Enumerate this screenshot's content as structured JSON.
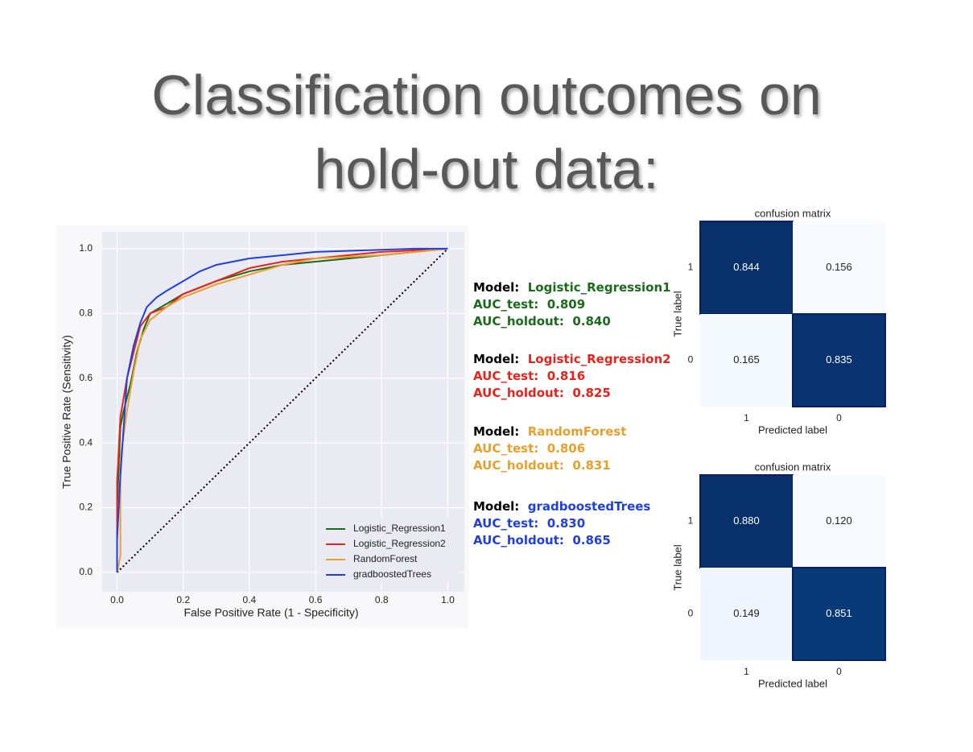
{
  "title": "Classification outcomes on hold-out data:",
  "chart_data": [
    {
      "type": "line",
      "xlabel": "False Positive Rate (1 - Specificity)",
      "ylabel": "True Positive Rate (Sensitivity)",
      "xlim": [
        -0.045,
        1.05
      ],
      "ylim": [
        -0.06,
        1.052
      ],
      "xticks": [
        {
          "value": 0,
          "label": "0.0"
        },
        0.2,
        0.4,
        0.6,
        0.8,
        {
          "value": 1,
          "label": "1.0"
        }
      ],
      "yticks": [
        {
          "value": 0,
          "label": "0.0"
        },
        0.2,
        0.4,
        0.6,
        0.8,
        {
          "value": 1,
          "label": "1.0"
        }
      ],
      "grid": true,
      "legend": "lower right",
      "series": [
        {
          "name": "Logistic_Regression1",
          "color": "#1a6b1a",
          "x": [
            0,
            0,
            0.01,
            0.02,
            0.04,
            0.06,
            0.08,
            0.1,
            0.15,
            0.2,
            0.3,
            0.4,
            0.5,
            0.6,
            0.8,
            1
          ],
          "values": [
            0,
            0.2,
            0.45,
            0.5,
            0.58,
            0.68,
            0.75,
            0.8,
            0.83,
            0.86,
            0.9,
            0.93,
            0.95,
            0.96,
            0.98,
            1
          ]
        },
        {
          "name": "Logistic_Regression2",
          "color": "#e8231c",
          "x": [
            0,
            0,
            0.01,
            0.03,
            0.05,
            0.07,
            0.1,
            0.15,
            0.2,
            0.3,
            0.4,
            0.5,
            0.6,
            0.8,
            1
          ],
          "values": [
            0,
            0.28,
            0.48,
            0.6,
            0.68,
            0.76,
            0.8,
            0.82,
            0.86,
            0.9,
            0.94,
            0.96,
            0.97,
            0.99,
            1
          ]
        },
        {
          "name": "RandomForest",
          "color": "#e8a02c",
          "x": [
            0,
            0.01,
            0.01,
            0.03,
            0.05,
            0.07,
            0.1,
            0.15,
            0.2,
            0.3,
            0.4,
            0.5,
            0.6,
            0.8,
            0.9,
            1
          ],
          "values": [
            0,
            0.05,
            0.35,
            0.5,
            0.62,
            0.72,
            0.78,
            0.82,
            0.85,
            0.89,
            0.92,
            0.95,
            0.97,
            0.98,
            0.99,
            1
          ]
        },
        {
          "name": "gradboostedTrees",
          "color": "#1f3fe0",
          "x": [
            0,
            0,
            0.01,
            0.02,
            0.03,
            0.05,
            0.07,
            0.09,
            0.12,
            0.15,
            0.2,
            0.25,
            0.3,
            0.4,
            0.5,
            0.6,
            0.75,
            0.9,
            1
          ],
          "values": [
            0,
            0.1,
            0.3,
            0.45,
            0.6,
            0.7,
            0.77,
            0.82,
            0.85,
            0.87,
            0.9,
            0.93,
            0.95,
            0.97,
            0.98,
            0.99,
            0.995,
            1,
            1
          ]
        }
      ]
    },
    {
      "type": "heatmap",
      "title": "confusion matrix",
      "xlabel": "Predicted label",
      "ylabel": "True label",
      "x_categories": [
        "1",
        "0"
      ],
      "y_categories": [
        "1",
        "0"
      ],
      "values": [
        [
          0.844,
          0.156
        ],
        [
          0.165,
          0.835
        ]
      ],
      "value_labels": [
        [
          "0.844",
          "0.156"
        ],
        [
          "0.165",
          "0.835"
        ]
      ]
    },
    {
      "type": "heatmap",
      "title": "confusion matrix",
      "xlabel": "Predicted label",
      "ylabel": "True label",
      "x_categories": [
        "1",
        "0"
      ],
      "y_categories": [
        "1",
        "0"
      ],
      "values": [
        [
          0.88,
          0.12
        ],
        [
          0.149,
          0.851
        ]
      ],
      "value_labels": [
        [
          "0.880",
          "0.120"
        ],
        [
          "0.149",
          "0.851"
        ]
      ]
    }
  ],
  "models": [
    {
      "label": "Model:",
      "name": "Logistic_Regression1",
      "auc_test_label": "AUC_test:",
      "auc_test": "0.809",
      "auc_holdout_label": "AUC_holdout:",
      "auc_holdout": "0.840"
    },
    {
      "label": "Model:",
      "name": "Logistic_Regression2",
      "auc_test_label": "AUC_test:",
      "auc_test": "0.816",
      "auc_holdout_label": "AUC_holdout:",
      "auc_holdout": "0.825"
    },
    {
      "label": "Model:",
      "name": "RandomForest",
      "auc_test_label": "AUC_test:",
      "auc_test": "0.806",
      "auc_holdout_label": "AUC_holdout:",
      "auc_holdout": "0.831"
    },
    {
      "label": "Model:",
      "name": "gradboostedTrees",
      "auc_test_label": "AUC_test:",
      "auc_test": "0.830",
      "auc_holdout_label": "AUC_holdout:",
      "auc_holdout": "0.865"
    }
  ]
}
